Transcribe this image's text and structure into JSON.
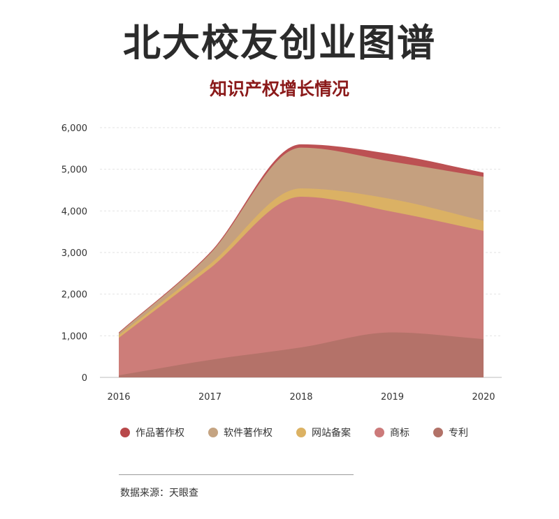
{
  "header": {
    "title": "北大校友创业图谱",
    "subtitle": "知识产权增长情况"
  },
  "footer": {
    "source": "数据来源：天眼查"
  },
  "chart_data": {
    "type": "area",
    "stacked": true,
    "x": [
      "2016",
      "2017",
      "2018",
      "2019",
      "2020"
    ],
    "y_ticks": [
      "0",
      "1,000",
      "2,000",
      "3,000",
      "4,000",
      "5,000",
      "6,000"
    ],
    "ylim": [
      0,
      6000
    ],
    "grid": true,
    "legend_position": "bottom",
    "series": [
      {
        "name": "专利",
        "color": "#b27268",
        "values": [
          50,
          420,
          720,
          1080,
          920
        ]
      },
      {
        "name": "商标",
        "color": "#cc7a7a",
        "values": [
          900,
          2200,
          3620,
          2900,
          2600
        ]
      },
      {
        "name": "网站备案",
        "color": "#dcb263",
        "values": [
          60,
          100,
          200,
          300,
          240
        ]
      },
      {
        "name": "软件著作权",
        "color": "#c5a482",
        "values": [
          50,
          250,
          980,
          900,
          1060
        ]
      },
      {
        "name": "作品著作权",
        "color": "#b8484a",
        "values": [
          20,
          30,
          80,
          180,
          100
        ]
      }
    ],
    "legend_order": [
      "作品著作权",
      "软件著作权",
      "网站备案",
      "商标",
      "专利"
    ]
  }
}
